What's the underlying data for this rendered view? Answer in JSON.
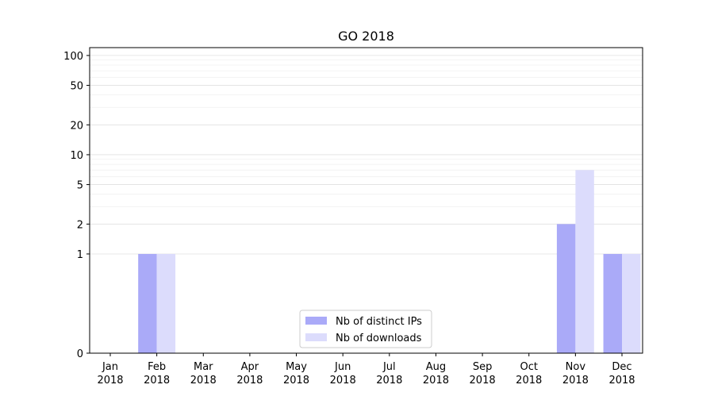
{
  "chart_data": {
    "type": "bar",
    "title": "GO 2018",
    "xlabel": "",
    "ylabel": "",
    "yscale": "symlog",
    "ylim": [
      0,
      120
    ],
    "yticks": [
      0,
      1,
      2,
      5,
      10,
      20,
      50,
      100
    ],
    "grid": true,
    "legend_position": "lower center",
    "categories": [
      "Jan\n2018",
      "Feb\n2018",
      "Mar\n2018",
      "Apr\n2018",
      "May\n2018",
      "Jun\n2018",
      "Jul\n2018",
      "Aug\n2018",
      "Sep\n2018",
      "Oct\n2018",
      "Nov\n2018",
      "Dec\n2018"
    ],
    "series": [
      {
        "name": "Nb of distinct IPs",
        "color": "#aaaaf8",
        "values": [
          0,
          1,
          0,
          0,
          0,
          0,
          0,
          0,
          0,
          0,
          2,
          1
        ]
      },
      {
        "name": "Nb of downloads",
        "color": "#dcdcfc",
        "values": [
          0,
          1,
          0,
          0,
          0,
          0,
          0,
          0,
          0,
          0,
          7,
          1
        ]
      }
    ]
  }
}
